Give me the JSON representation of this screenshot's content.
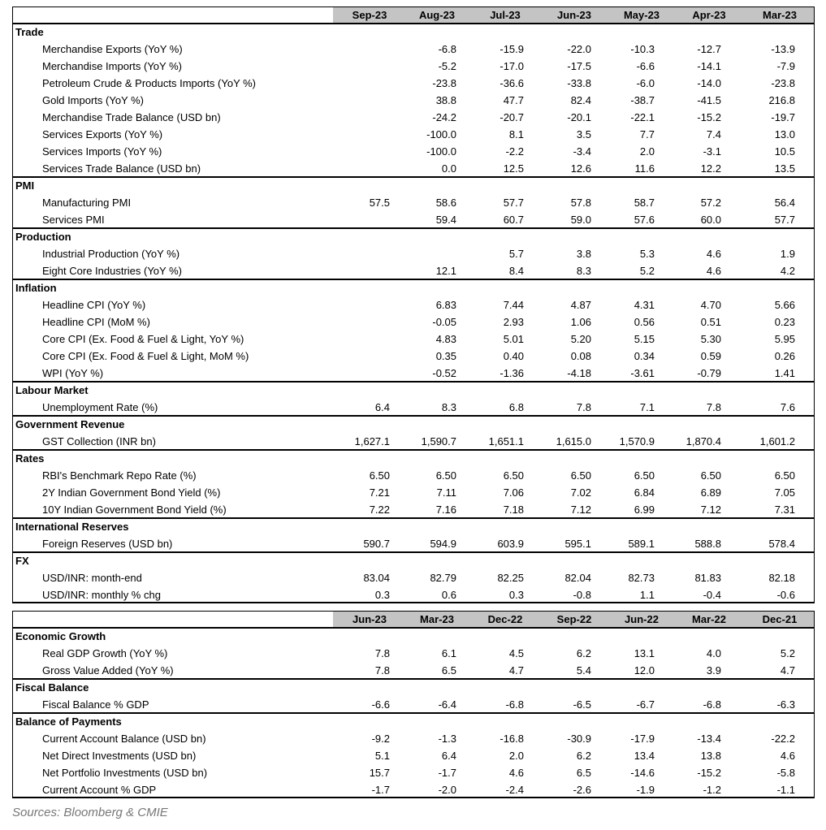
{
  "tables": [
    {
      "columns": [
        "Sep-23",
        "Aug-23",
        "Jul-23",
        "Jun-23",
        "May-23",
        "Apr-23",
        "Mar-23"
      ],
      "sections": [
        {
          "title": "Trade",
          "rows": [
            {
              "label": "Merchandise Exports (YoY %)",
              "values": [
                null,
                "-6.8",
                "-15.9",
                "-22.0",
                "-10.3",
                "-12.7",
                "-13.9"
              ]
            },
            {
              "label": "Merchandise Imports (YoY %)",
              "values": [
                null,
                "-5.2",
                "-17.0",
                "-17.5",
                "-6.6",
                "-14.1",
                "-7.9"
              ]
            },
            {
              "label": "Petroleum Crude & Products Imports (YoY %)",
              "values": [
                null,
                "-23.8",
                "-36.6",
                "-33.8",
                "-6.0",
                "-14.0",
                "-23.8"
              ]
            },
            {
              "label": "Gold Imports (YoY %)",
              "values": [
                null,
                "38.8",
                "47.7",
                "82.4",
                "-38.7",
                "-41.5",
                "216.8"
              ]
            },
            {
              "label": "Merchandise Trade Balance (USD bn)",
              "values": [
                null,
                "-24.2",
                "-20.7",
                "-20.1",
                "-22.1",
                "-15.2",
                "-19.7"
              ]
            },
            {
              "label": "Services Exports (YoY %)",
              "values": [
                null,
                "-100.0",
                "8.1",
                "3.5",
                "7.7",
                "7.4",
                "13.0"
              ]
            },
            {
              "label": "Services Imports (YoY %)",
              "values": [
                null,
                "-100.0",
                "-2.2",
                "-3.4",
                "2.0",
                "-3.1",
                "10.5"
              ]
            },
            {
              "label": "Services Trade Balance (USD bn)",
              "values": [
                null,
                "0.0",
                "12.5",
                "12.6",
                "11.6",
                "12.2",
                "13.5"
              ]
            }
          ]
        },
        {
          "title": "PMI",
          "rows": [
            {
              "label": "Manufacturing PMI",
              "values": [
                "57.5",
                "58.6",
                "57.7",
                "57.8",
                "58.7",
                "57.2",
                "56.4"
              ]
            },
            {
              "label": "Services PMI",
              "values": [
                null,
                "59.4",
                "60.7",
                "59.0",
                "57.6",
                "60.0",
                "57.7"
              ]
            }
          ]
        },
        {
          "title": "Production",
          "rows": [
            {
              "label": "Industrial Production (YoY %)",
              "values": [
                null,
                null,
                "5.7",
                "3.8",
                "5.3",
                "4.6",
                "1.9"
              ]
            },
            {
              "label": "Eight Core Industries (YoY %)",
              "values": [
                null,
                "12.1",
                "8.4",
                "8.3",
                "5.2",
                "4.6",
                "4.2"
              ]
            }
          ]
        },
        {
          "title": "Inflation",
          "rows": [
            {
              "label": "Headline CPI (YoY %)",
              "values": [
                null,
                "6.83",
                "7.44",
                "4.87",
                "4.31",
                "4.70",
                "5.66"
              ]
            },
            {
              "label": "Headline CPI (MoM %)",
              "values": [
                null,
                "-0.05",
                "2.93",
                "1.06",
                "0.56",
                "0.51",
                "0.23"
              ]
            },
            {
              "label": "Core CPI (Ex. Food & Fuel & Light, YoY %)",
              "values": [
                null,
                "4.83",
                "5.01",
                "5.20",
                "5.15",
                "5.30",
                "5.95"
              ]
            },
            {
              "label": "Core CPI (Ex. Food & Fuel & Light, MoM %)",
              "values": [
                null,
                "0.35",
                "0.40",
                "0.08",
                "0.34",
                "0.59",
                "0.26"
              ]
            },
            {
              "label": "WPI (YoY %)",
              "values": [
                null,
                "-0.52",
                "-1.36",
                "-4.18",
                "-3.61",
                "-0.79",
                "1.41"
              ]
            }
          ]
        },
        {
          "title": "Labour Market",
          "rows": [
            {
              "label": "Unemployment Rate (%)",
              "values": [
                "6.4",
                "8.3",
                "6.8",
                "7.8",
                "7.1",
                "7.8",
                "7.6"
              ]
            }
          ]
        },
        {
          "title": "Government Revenue",
          "rows": [
            {
              "label": "GST Collection (INR bn)",
              "values": [
                "1,627.1",
                "1,590.7",
                "1,651.1",
                "1,615.0",
                "1,570.9",
                "1,870.4",
                "1,601.2"
              ]
            }
          ]
        },
        {
          "title": "Rates",
          "rows": [
            {
              "label": "RBI's Benchmark Repo Rate (%)",
              "values": [
                "6.50",
                "6.50",
                "6.50",
                "6.50",
                "6.50",
                "6.50",
                "6.50"
              ]
            },
            {
              "label": "2Y Indian Government Bond Yield (%)",
              "values": [
                "7.21",
                "7.11",
                "7.06",
                "7.02",
                "6.84",
                "6.89",
                "7.05"
              ]
            },
            {
              "label": "10Y Indian Government Bond Yield (%)",
              "values": [
                "7.22",
                "7.16",
                "7.18",
                "7.12",
                "6.99",
                "7.12",
                "7.31"
              ]
            }
          ]
        },
        {
          "title": "International Reserves",
          "rows": [
            {
              "label": "Foreign Reserves (USD bn)",
              "values": [
                "590.7",
                "594.9",
                "603.9",
                "595.1",
                "589.1",
                "588.8",
                "578.4"
              ]
            }
          ]
        },
        {
          "title": "FX",
          "rows": [
            {
              "label": "USD/INR: month-end",
              "values": [
                "83.04",
                "82.79",
                "82.25",
                "82.04",
                "82.73",
                "81.83",
                "82.18"
              ]
            },
            {
              "label": "USD/INR: monthly % chg",
              "values": [
                "0.3",
                "0.6",
                "0.3",
                "-0.8",
                "1.1",
                "-0.4",
                "-0.6"
              ]
            }
          ]
        }
      ]
    },
    {
      "columns": [
        "Jun-23",
        "Mar-23",
        "Dec-22",
        "Sep-22",
        "Jun-22",
        "Mar-22",
        "Dec-21"
      ],
      "sections": [
        {
          "title": "Economic Growth",
          "rows": [
            {
              "label": "Real GDP Growth (YoY %)",
              "values": [
                "7.8",
                "6.1",
                "4.5",
                "6.2",
                "13.1",
                "4.0",
                "5.2"
              ]
            },
            {
              "label": "Gross Value Added (YoY %)",
              "values": [
                "7.8",
                "6.5",
                "4.7",
                "5.4",
                "12.0",
                "3.9",
                "4.7"
              ]
            }
          ]
        },
        {
          "title": "Fiscal Balance",
          "rows": [
            {
              "label": "Fiscal Balance % GDP",
              "values": [
                "-6.6",
                "-6.4",
                "-6.8",
                "-6.5",
                "-6.7",
                "-6.8",
                "-6.3"
              ]
            }
          ]
        },
        {
          "title": "Balance of Payments",
          "rows": [
            {
              "label": "Current Account Balance (USD bn)",
              "values": [
                "-9.2",
                "-1.3",
                "-16.8",
                "-30.9",
                "-17.9",
                "-13.4",
                "-22.2"
              ]
            },
            {
              "label": "Net Direct Investments (USD bn)",
              "values": [
                "5.1",
                "6.4",
                "2.0",
                "6.2",
                "13.4",
                "13.8",
                "4.6"
              ]
            },
            {
              "label": "Net Portfolio Investments (USD bn)",
              "values": [
                "15.7",
                "-1.7",
                "4.6",
                "6.5",
                "-14.6",
                "-15.2",
                "-5.8"
              ]
            },
            {
              "label": "Current Account % GDP",
              "values": [
                "-1.7",
                "-2.0",
                "-2.4",
                "-2.6",
                "-1.9",
                "-1.2",
                "-1.1"
              ]
            }
          ]
        }
      ]
    }
  ],
  "footer": "Sources: Bloomberg & CMIE"
}
